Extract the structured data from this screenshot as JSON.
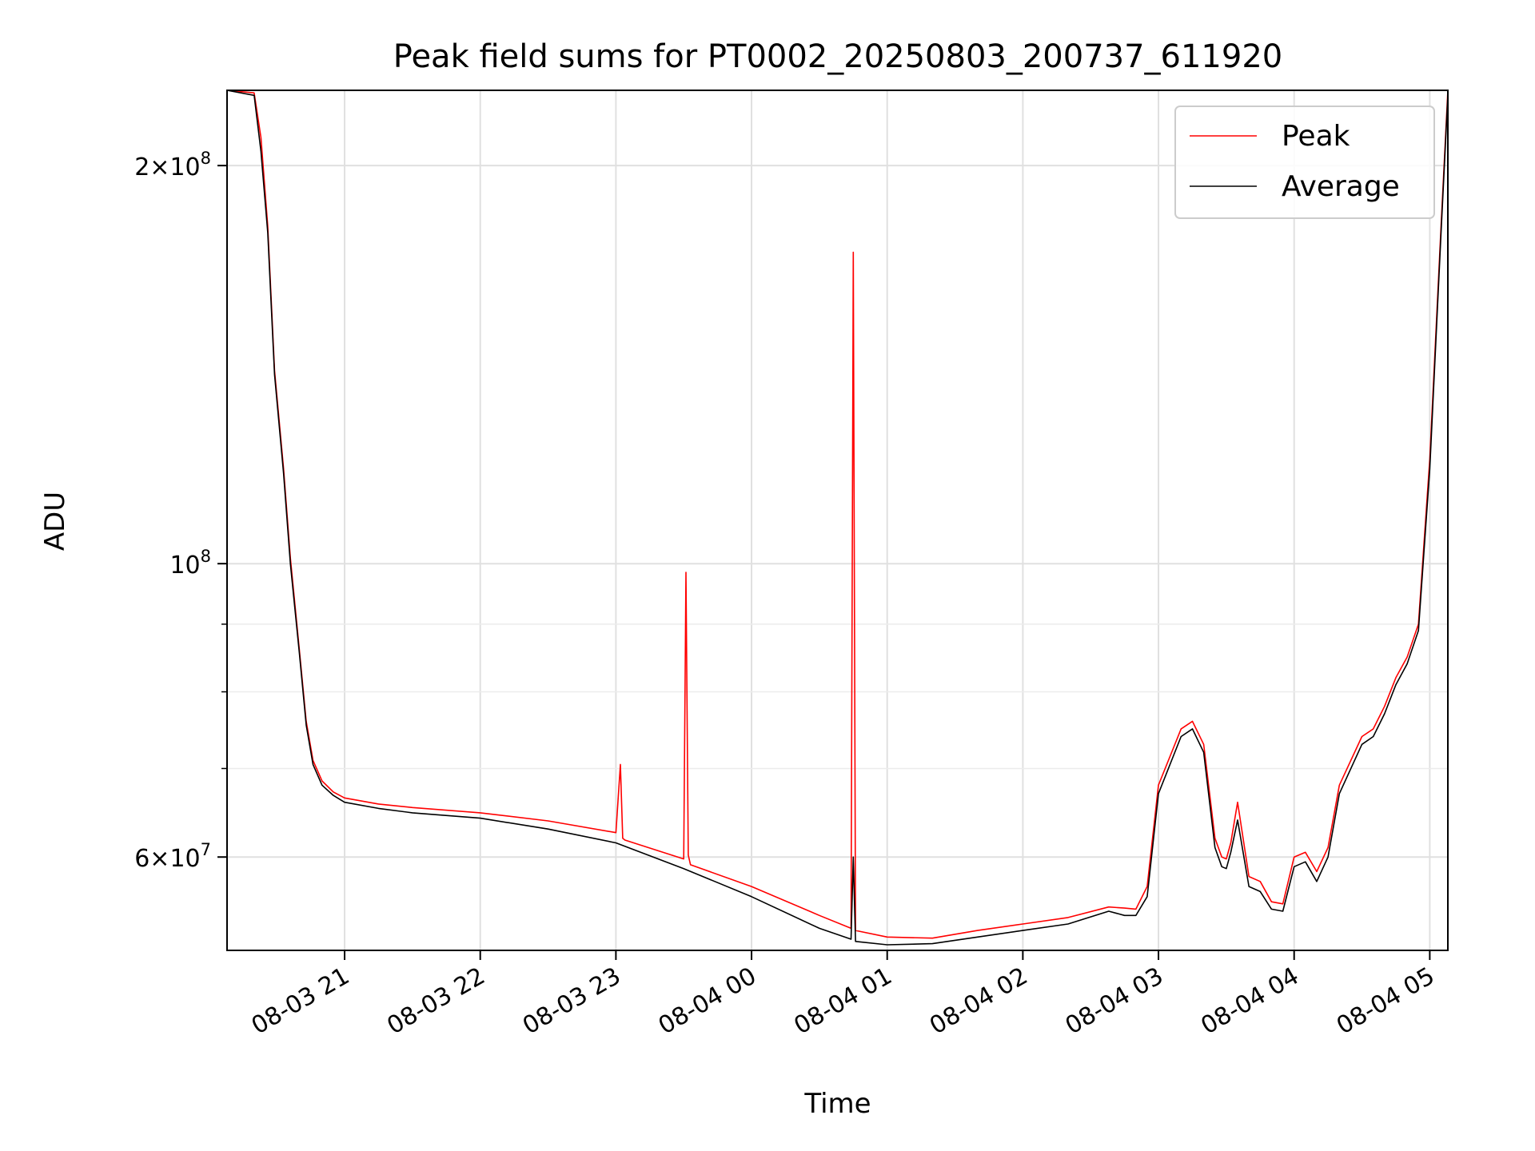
{
  "chart_data": {
    "type": "line",
    "title": "Peak field sums for PT0002_20250803_200737_611920",
    "xlabel": "Time",
    "ylabel": "ADU",
    "y_scale": "log",
    "ylim": [
      51000000,
      228000000
    ],
    "x_range": [
      "2025-08-03 20:08",
      "2025-08-04 05:08"
    ],
    "grid": true,
    "legend_position": "upper right",
    "x_ticks": [
      "08-03 21",
      "08-03 22",
      "08-03 23",
      "08-04 00",
      "08-04 01",
      "08-04 02",
      "08-04 03",
      "08-04 04",
      "08-04 05"
    ],
    "y_ticks": [
      {
        "label_mantissa": "2",
        "label_power": "8",
        "style": "2×10^8"
      },
      {
        "label_mantissa": "",
        "label_power": "8",
        "style": "10^8"
      },
      {
        "label_mantissa": "6",
        "label_power": "7",
        "style": "6×10^7"
      }
    ],
    "series": [
      {
        "name": "Peak",
        "color": "#ff0000",
        "x": [
          "2025-08-03 20:08",
          "2025-08-03 20:20",
          "2025-08-03 20:23",
          "2025-08-03 20:26",
          "2025-08-03 20:29",
          "2025-08-03 20:33",
          "2025-08-03 20:36",
          "2025-08-03 20:40",
          "2025-08-03 20:43",
          "2025-08-03 20:46",
          "2025-08-03 20:50",
          "2025-08-03 20:55",
          "2025-08-03 21:00",
          "2025-08-03 21:15",
          "2025-08-03 21:30",
          "2025-08-03 22:00",
          "2025-08-03 22:30",
          "2025-08-03 23:00",
          "2025-08-03 23:02",
          "2025-08-03 23:03",
          "2025-08-03 23:04",
          "2025-08-03 23:30",
          "2025-08-03 23:31",
          "2025-08-03 23:32",
          "2025-08-03 23:33",
          "2025-08-04 00:00",
          "2025-08-04 00:30",
          "2025-08-04 00:44",
          "2025-08-04 00:45",
          "2025-08-04 00:46",
          "2025-08-04 01:00",
          "2025-08-04 01:20",
          "2025-08-04 01:40",
          "2025-08-04 02:00",
          "2025-08-04 02:20",
          "2025-08-04 02:38",
          "2025-08-04 02:45",
          "2025-08-04 02:50",
          "2025-08-04 02:55",
          "2025-08-04 03:00",
          "2025-08-04 03:10",
          "2025-08-04 03:15",
          "2025-08-04 03:20",
          "2025-08-04 03:25",
          "2025-08-04 03:28",
          "2025-08-04 03:30",
          "2025-08-04 03:32",
          "2025-08-04 03:35",
          "2025-08-04 03:40",
          "2025-08-04 03:45",
          "2025-08-04 03:50",
          "2025-08-04 03:55",
          "2025-08-04 04:00",
          "2025-08-04 04:05",
          "2025-08-04 04:10",
          "2025-08-04 04:15",
          "2025-08-04 04:20",
          "2025-08-04 04:30",
          "2025-08-04 04:35",
          "2025-08-04 04:40",
          "2025-08-04 04:45",
          "2025-08-04 04:50",
          "2025-08-04 04:55",
          "2025-08-04 05:00",
          "2025-08-04 05:05",
          "2025-08-04 05:08"
        ],
        "y": [
          228000000,
          227000000,
          210000000,
          180000000,
          140000000,
          118000000,
          101000000,
          86000000,
          76000000,
          71000000,
          68500000,
          67200000,
          66500000,
          65800000,
          65400000,
          64800000,
          63900000,
          62600000,
          70500000,
          62000000,
          61800000,
          59800000,
          98500000,
          60200000,
          59200000,
          57000000,
          54200000,
          53000000,
          172000000,
          52800000,
          52200000,
          52100000,
          52800000,
          53400000,
          54000000,
          55000000,
          54900000,
          54800000,
          57000000,
          68000000,
          75000000,
          76000000,
          73000000,
          62000000,
          60000000,
          59800000,
          61500000,
          66000000,
          58000000,
          57500000,
          55500000,
          55300000,
          60000000,
          60500000,
          58500000,
          61000000,
          68000000,
          74000000,
          75000000,
          78000000,
          82000000,
          85000000,
          90000000,
          120000000,
          180000000,
          228000000
        ]
      },
      {
        "name": "Average",
        "color": "#000000",
        "x": [
          "2025-08-03 20:08",
          "2025-08-03 20:20",
          "2025-08-03 20:23",
          "2025-08-03 20:26",
          "2025-08-03 20:29",
          "2025-08-03 20:33",
          "2025-08-03 20:36",
          "2025-08-03 20:40",
          "2025-08-03 20:43",
          "2025-08-03 20:46",
          "2025-08-03 20:50",
          "2025-08-03 20:55",
          "2025-08-03 21:00",
          "2025-08-03 21:15",
          "2025-08-03 21:30",
          "2025-08-03 22:00",
          "2025-08-03 22:30",
          "2025-08-03 23:00",
          "2025-08-03 23:30",
          "2025-08-04 00:00",
          "2025-08-04 00:30",
          "2025-08-04 00:44",
          "2025-08-04 00:45",
          "2025-08-04 00:46",
          "2025-08-04 01:00",
          "2025-08-04 01:20",
          "2025-08-04 01:40",
          "2025-08-04 02:00",
          "2025-08-04 02:20",
          "2025-08-04 02:38",
          "2025-08-04 02:45",
          "2025-08-04 02:50",
          "2025-08-04 02:55",
          "2025-08-04 03:00",
          "2025-08-04 03:10",
          "2025-08-04 03:15",
          "2025-08-04 03:20",
          "2025-08-04 03:25",
          "2025-08-04 03:28",
          "2025-08-04 03:30",
          "2025-08-04 03:32",
          "2025-08-04 03:35",
          "2025-08-04 03:40",
          "2025-08-04 03:45",
          "2025-08-04 03:50",
          "2025-08-04 03:55",
          "2025-08-04 04:00",
          "2025-08-04 04:05",
          "2025-08-04 04:10",
          "2025-08-04 04:15",
          "2025-08-04 04:20",
          "2025-08-04 04:30",
          "2025-08-04 04:35",
          "2025-08-04 04:40",
          "2025-08-04 04:45",
          "2025-08-04 04:50",
          "2025-08-04 04:55",
          "2025-08-04 05:00",
          "2025-08-04 05:05",
          "2025-08-04 05:08"
        ],
        "y": [
          228000000,
          226000000,
          205000000,
          178000000,
          139000000,
          117000000,
          100000000,
          85500000,
          75500000,
          70500000,
          68000000,
          66800000,
          66000000,
          65300000,
          64800000,
          64200000,
          63000000,
          61500000,
          58800000,
          56000000,
          53000000,
          52000000,
          60000000,
          51800000,
          51500000,
          51600000,
          52200000,
          52800000,
          53400000,
          54600000,
          54200000,
          54200000,
          56000000,
          67000000,
          74000000,
          75000000,
          72000000,
          61000000,
          59000000,
          58800000,
          60500000,
          64000000,
          57000000,
          56500000,
          54800000,
          54600000,
          59000000,
          59500000,
          57500000,
          60000000,
          67000000,
          73000000,
          74000000,
          77000000,
          81000000,
          84000000,
          89000000,
          118000000,
          178000000,
          226000000
        ]
      }
    ]
  }
}
